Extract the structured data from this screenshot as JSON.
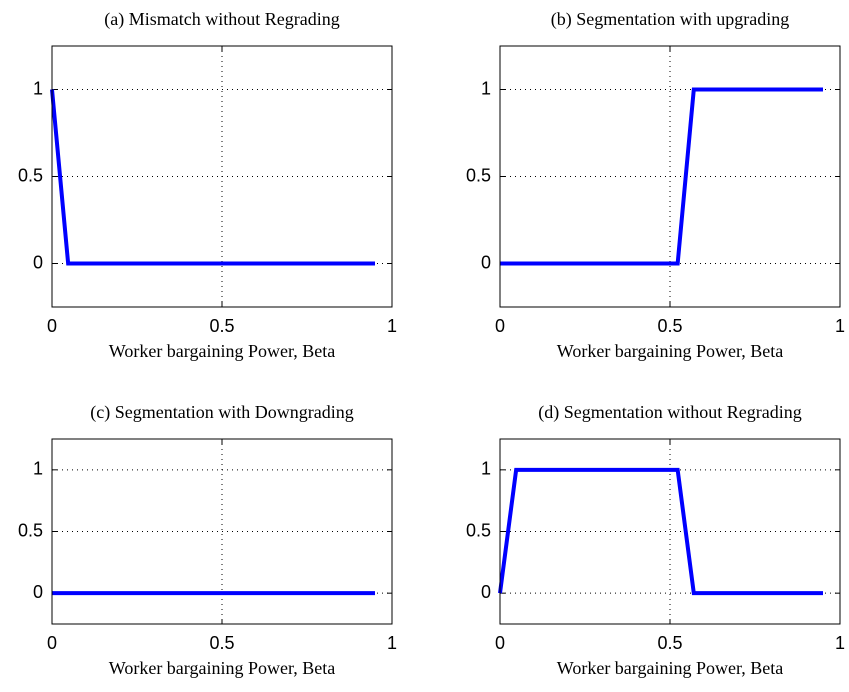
{
  "chart_data": [
    {
      "type": "line",
      "title": "(a) Mismatch without Regrading",
      "xlabel": "Worker bargaining Power, Beta",
      "x": [
        0,
        0.0475,
        0.095,
        0.1425,
        0.19,
        0.2375,
        0.285,
        0.3325,
        0.38,
        0.4275,
        0.475,
        0.5225,
        0.57,
        0.6175,
        0.665,
        0.7125,
        0.76,
        0.8075,
        0.855,
        0.9025,
        0.95
      ],
      "series": [
        {
          "color": "#0000ff",
          "values": [
            1,
            0,
            0,
            0,
            0,
            0,
            0,
            0,
            0,
            0,
            0,
            0,
            0,
            0,
            0,
            0,
            0,
            0,
            0,
            0,
            0
          ]
        }
      ],
      "xlim": [
        0,
        1
      ],
      "xticks": [
        0,
        0.5,
        1
      ],
      "ylim": [
        -0.25,
        1.25
      ],
      "yticks": [
        0,
        0.5,
        1
      ],
      "grid": true
    },
    {
      "type": "line",
      "title": "(b) Segmentation with upgrading",
      "xlabel": "Worker bargaining Power, Beta",
      "x": [
        0,
        0.0475,
        0.095,
        0.1425,
        0.19,
        0.2375,
        0.285,
        0.3325,
        0.38,
        0.4275,
        0.475,
        0.5225,
        0.57,
        0.6175,
        0.665,
        0.7125,
        0.76,
        0.8075,
        0.855,
        0.9025,
        0.95
      ],
      "series": [
        {
          "color": "#0000ff",
          "values": [
            0,
            0,
            0,
            0,
            0,
            0,
            0,
            0,
            0,
            0,
            0,
            0,
            1,
            1,
            1,
            1,
            1,
            1,
            1,
            1,
            1
          ]
        }
      ],
      "xlim": [
        0,
        1
      ],
      "xticks": [
        0,
        0.5,
        1
      ],
      "ylim": [
        -0.25,
        1.25
      ],
      "yticks": [
        0,
        0.5,
        1
      ],
      "grid": true
    },
    {
      "type": "line",
      "title": "(c) Segmentation with Downgrading",
      "xlabel": "Worker bargaining Power, Beta",
      "x": [
        0,
        0.0475,
        0.095,
        0.1425,
        0.19,
        0.2375,
        0.285,
        0.3325,
        0.38,
        0.4275,
        0.475,
        0.5225,
        0.57,
        0.6175,
        0.665,
        0.7125,
        0.76,
        0.8075,
        0.855,
        0.9025,
        0.95
      ],
      "series": [
        {
          "color": "#0000ff",
          "values": [
            0,
            0,
            0,
            0,
            0,
            0,
            0,
            0,
            0,
            0,
            0,
            0,
            0,
            0,
            0,
            0,
            0,
            0,
            0,
            0,
            0
          ]
        }
      ],
      "xlim": [
        0,
        1
      ],
      "xticks": [
        0,
        0.5,
        1
      ],
      "ylim": [
        -0.25,
        1.25
      ],
      "yticks": [
        0,
        0.5,
        1
      ],
      "grid": true
    },
    {
      "type": "line",
      "title": "(d) Segmentation without Regrading",
      "xlabel": "Worker bargaining Power, Beta",
      "x": [
        0,
        0.0475,
        0.095,
        0.1425,
        0.19,
        0.2375,
        0.285,
        0.3325,
        0.38,
        0.4275,
        0.475,
        0.5225,
        0.57,
        0.6175,
        0.665,
        0.7125,
        0.76,
        0.8075,
        0.855,
        0.9025,
        0.95
      ],
      "series": [
        {
          "color": "#0000ff",
          "values": [
            0,
            1,
            1,
            1,
            1,
            1,
            1,
            1,
            1,
            1,
            1,
            1,
            0,
            0,
            0,
            0,
            0,
            0,
            0,
            0,
            0
          ]
        }
      ],
      "xlim": [
        0,
        1
      ],
      "xticks": [
        0,
        0.5,
        1
      ],
      "ylim": [
        -0.25,
        1.25
      ],
      "yticks": [
        0,
        0.5,
        1
      ],
      "grid": true
    }
  ]
}
